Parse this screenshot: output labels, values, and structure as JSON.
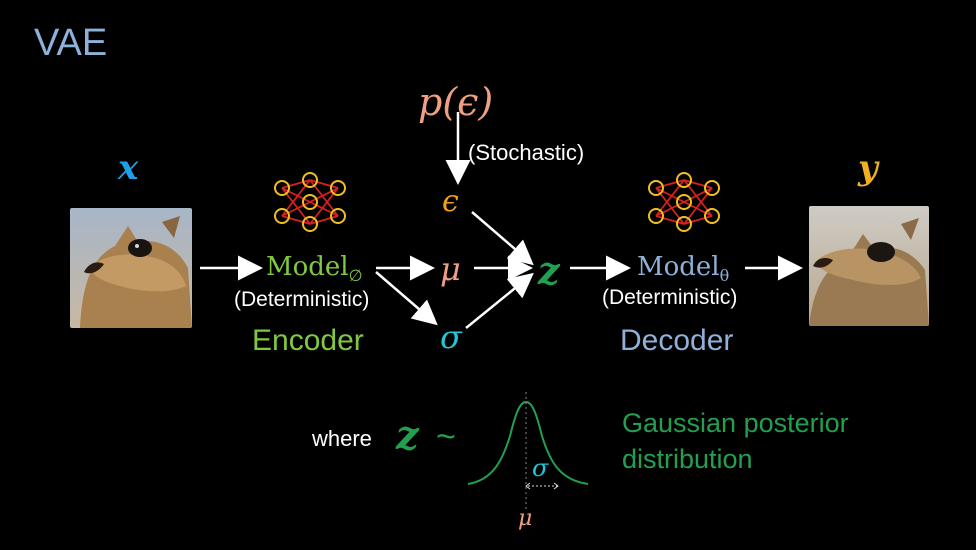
{
  "title": "VAE",
  "inputs": {
    "x_label": "x",
    "y_label": "y"
  },
  "sampling": {
    "prior": "p(ϵ)",
    "stochastic_label": "(Stochastic)",
    "epsilon": "ϵ"
  },
  "latent": {
    "mu": "μ",
    "sigma": "σ",
    "z": "z"
  },
  "encoder": {
    "model_text": "Model",
    "model_sub": "∅",
    "det_label": "(Deterministic)",
    "name": "Encoder"
  },
  "decoder": {
    "model_text": "Model",
    "model_sub": "θ",
    "det_label": "(Deterministic)",
    "name": "Decoder"
  },
  "distribution": {
    "where_label": "where",
    "z": "z",
    "tilde": "~",
    "caption_line1": "Gaussian posterior",
    "caption_line2": "distribution",
    "sigma": "σ",
    "mu": "μ"
  },
  "colors": {
    "title": "#8fb0d8",
    "encoder": "#80c840",
    "decoder": "#8fb0d8",
    "latent_z": "#22a050",
    "sigma": "#20c8d8",
    "mu": "#f0a080",
    "x": "#1ea0e6",
    "y": "#f0b020"
  },
  "icons": [
    "neural-network-icon",
    "arrow-icon",
    "gaussian-curve-icon"
  ]
}
